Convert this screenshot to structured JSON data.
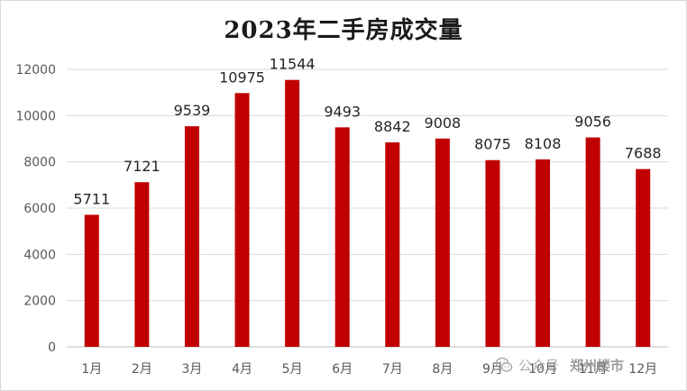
{
  "chart_data": {
    "type": "bar",
    "title": "2023年二手房成交量",
    "categories": [
      "1月",
      "2月",
      "3月",
      "4月",
      "5月",
      "6月",
      "7月",
      "8月",
      "9月",
      "10月",
      "11月",
      "12月"
    ],
    "values": [
      5711,
      7121,
      9539,
      10975,
      11544,
      9493,
      8842,
      9008,
      8075,
      8108,
      9056,
      7688
    ],
    "ylim": [
      0,
      12000
    ],
    "yticks": [
      0,
      2000,
      4000,
      6000,
      8000,
      10000,
      12000
    ],
    "grid": true,
    "legend": "none",
    "data_labels": true,
    "bar_color": "#c00000"
  },
  "watermark": {
    "platform": "公众号",
    "account": "郑州楼市",
    "icon": "wechat-icon"
  }
}
